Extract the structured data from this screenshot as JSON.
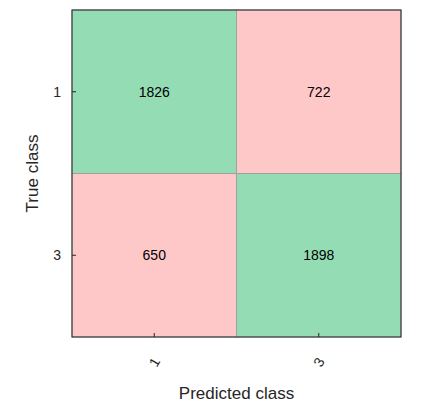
{
  "chart_data": {
    "type": "heatmap",
    "xlabel": "Predicted class",
    "ylabel": "True class",
    "x_categories": [
      "1",
      "3"
    ],
    "y_categories": [
      "1",
      "3"
    ],
    "cells": [
      [
        1826,
        722
      ],
      [
        650,
        1898
      ]
    ],
    "colors": [
      [
        "#94dcb4",
        "#ffc8c8"
      ],
      [
        "#ffc8c8",
        "#94dcb4"
      ]
    ],
    "data_labels": true
  }
}
